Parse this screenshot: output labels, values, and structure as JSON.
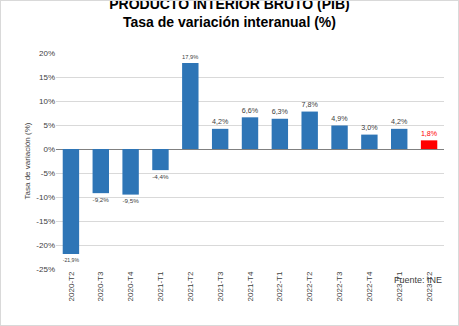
{
  "chart_data": {
    "type": "bar",
    "title": "PRODUCTO INTERIOR BRUTO (PIB)",
    "subtitle": "Tasa de variación interanual (%)",
    "y_label": "Tasa de variación (%)",
    "annotations": [
      "Fuente: INE"
    ],
    "categories": [
      "2020-T2",
      "2020-T3",
      "2020-T4",
      "2021-T1",
      "2021-T2",
      "2021-T3",
      "2021-T4",
      "2022-T1",
      "2022-T2",
      "2022-T3",
      "2022-T4",
      "2023-T1",
      "2023-T2"
    ],
    "values": [
      -21.9,
      -9.2,
      -9.5,
      -4.4,
      17.9,
      4.2,
      6.6,
      6.3,
      7.8,
      4.9,
      3.0,
      4.2,
      1.8
    ],
    "value_labels": [
      "-21,9%",
      "-9,2%",
      "-9,5%",
      "-4,4%",
      "17,9%",
      "4,2%",
      "6,6%",
      "6,3%",
      "7,8%",
      "4,9%",
      "3,0%",
      "4,2%",
      "1,8%"
    ],
    "colors": [
      "#2e75b6",
      "#2e75b6",
      "#2e75b6",
      "#2e75b6",
      "#2e75b6",
      "#2e75b6",
      "#2e75b6",
      "#2e75b6",
      "#2e75b6",
      "#2e75b6",
      "#2e75b6",
      "#2e75b6",
      "#ff0000"
    ],
    "ylim": [
      -25,
      20
    ],
    "yticks": [
      {
        "value": -25,
        "label": "-25%"
      },
      {
        "value": -20,
        "label": "-20%"
      },
      {
        "value": -15,
        "label": "-15%"
      },
      {
        "value": -10,
        "label": "-10%"
      },
      {
        "value": -5,
        "label": "-5%"
      },
      {
        "value": 0,
        "label": "0%"
      },
      {
        "value": 5,
        "label": "5%"
      },
      {
        "value": 10,
        "label": "10%"
      },
      {
        "value": 15,
        "label": "15%"
      },
      {
        "value": 20,
        "label": "20%"
      }
    ],
    "grid": true,
    "data_labels": true
  }
}
